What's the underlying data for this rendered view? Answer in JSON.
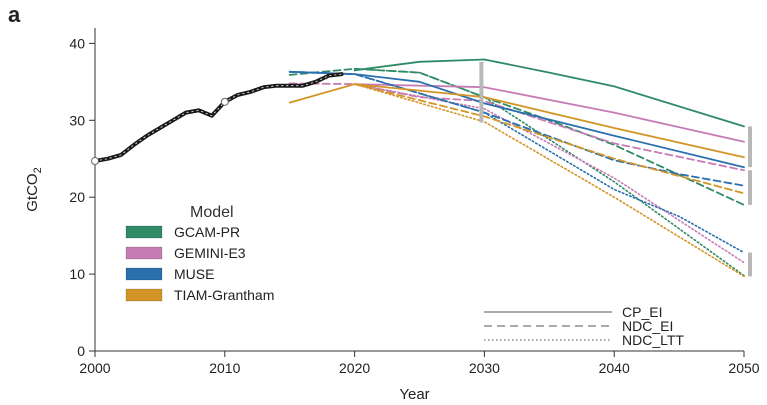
{
  "panel_label": "a",
  "chart_data": {
    "type": "line",
    "xlabel": "Year",
    "ylabel": "GtCO",
    "ylabel_sub": "2",
    "xlim": [
      2000,
      2050
    ],
    "ylim": [
      0,
      42
    ],
    "xticks": [
      "2000",
      "2010",
      "2020",
      "2030",
      "2040",
      "2050"
    ],
    "yticks": [
      "0",
      "10",
      "20",
      "30",
      "40"
    ],
    "grid": false,
    "colors": {
      "GCAM-PR": "#2e8b66",
      "GEMINI-E3": "#c77bb5",
      "MUSE": "#2a6fae",
      "TIAM-Grantham": "#d39528",
      "historical": "#1a1a1a",
      "range_bar": "#b8b8b8"
    },
    "legend_models": {
      "title": "Model",
      "items": [
        "GCAM-PR",
        "GEMINI-E3",
        "MUSE",
        "TIAM-Grantham"
      ],
      "placement": "center-left"
    },
    "legend_scenarios": {
      "items": [
        {
          "name": "CP_EI",
          "style": "solid"
        },
        {
          "name": "NDC_EI",
          "style": "dashed"
        },
        {
          "name": "NDC_LTT",
          "style": "dotted"
        }
      ],
      "placement": "bottom-right"
    },
    "historical": {
      "x": [
        2000,
        2001,
        2002,
        2003,
        2004,
        2005,
        2006,
        2007,
        2008,
        2009,
        2010,
        2011,
        2012,
        2013,
        2014,
        2015,
        2016,
        2017,
        2018,
        2019
      ],
      "y": [
        24.7,
        25.0,
        25.5,
        26.8,
        28.0,
        29.0,
        30.0,
        31.0,
        31.3,
        30.6,
        32.4,
        33.3,
        33.7,
        34.3,
        34.5,
        34.5,
        34.5,
        35.0,
        35.8,
        36.0
      ],
      "markers_at": [
        2000,
        2010
      ]
    },
    "series": [
      {
        "name": "GCAM-PR",
        "scenario": "CP_EI",
        "x": [
          2020,
          2025,
          2030,
          2035,
          2040,
          2050
        ],
        "y": [
          36.5,
          37.6,
          37.9,
          36.2,
          34.4,
          29.2
        ]
      },
      {
        "name": "GCAM-PR",
        "scenario": "NDC_EI",
        "x": [
          2015,
          2020,
          2025,
          2030,
          2035,
          2040,
          2050
        ],
        "y": [
          35.9,
          36.7,
          36.2,
          33.0,
          30.0,
          26.8,
          19.0
        ]
      },
      {
        "name": "GCAM-PR",
        "scenario": "NDC_LTT",
        "x": [
          2020,
          2025,
          2030,
          2040,
          2050
        ],
        "y": [
          36.7,
          36.2,
          33.0,
          22.0,
          9.8
        ]
      },
      {
        "name": "GEMINI-E3",
        "scenario": "CP_EI",
        "x": [
          2020,
          2030,
          2040,
          2050
        ],
        "y": [
          34.7,
          34.3,
          31.0,
          27.2
        ]
      },
      {
        "name": "GEMINI-E3",
        "scenario": "NDC_EI",
        "x": [
          2015,
          2020,
          2025,
          2030,
          2040,
          2050
        ],
        "y": [
          34.8,
          34.7,
          33.0,
          32.5,
          27.0,
          23.5
        ]
      },
      {
        "name": "GEMINI-E3",
        "scenario": "NDC_LTT",
        "x": [
          2020,
          2030,
          2040,
          2050
        ],
        "y": [
          34.7,
          31.5,
          22.5,
          11.5
        ]
      },
      {
        "name": "MUSE",
        "scenario": "CP_EI",
        "x": [
          2015,
          2020,
          2025,
          2030,
          2040,
          2050
        ],
        "y": [
          36.3,
          36.0,
          35.0,
          32.2,
          28.0,
          23.9
        ]
      },
      {
        "name": "MUSE",
        "scenario": "NDC_EI",
        "x": [
          2015,
          2020,
          2030,
          2040,
          2045,
          2050
        ],
        "y": [
          36.3,
          36.0,
          31.0,
          24.8,
          23.0,
          21.5
        ]
      },
      {
        "name": "MUSE",
        "scenario": "NDC_LTT",
        "x": [
          2015,
          2020,
          2030,
          2040,
          2045,
          2050
        ],
        "y": [
          36.3,
          36.0,
          31.0,
          21.0,
          17.5,
          12.8
        ]
      },
      {
        "name": "TIAM-Grantham",
        "scenario": "CP_EI",
        "x": [
          2015,
          2020,
          2030,
          2040,
          2050
        ],
        "y": [
          32.3,
          34.7,
          33.0,
          29.0,
          25.2
        ]
      },
      {
        "name": "TIAM-Grantham",
        "scenario": "NDC_EI",
        "x": [
          2020,
          2030,
          2040,
          2050
        ],
        "y": [
          34.7,
          30.5,
          25.0,
          20.5
        ]
      },
      {
        "name": "TIAM-Grantham",
        "scenario": "NDC_LTT",
        "x": [
          2020,
          2030,
          2040,
          2050
        ],
        "y": [
          34.7,
          29.8,
          20.0,
          9.7
        ]
      }
    ],
    "range_bars": [
      {
        "x": 2030,
        "y_low": 29.7,
        "y_high": 37.6
      },
      {
        "x": 2050,
        "y_low": 23.9,
        "y_high": 29.2
      },
      {
        "x": 2050,
        "y_low": 19.0,
        "y_high": 23.5
      },
      {
        "x": 2050,
        "y_low": 9.7,
        "y_high": 12.8
      }
    ]
  }
}
